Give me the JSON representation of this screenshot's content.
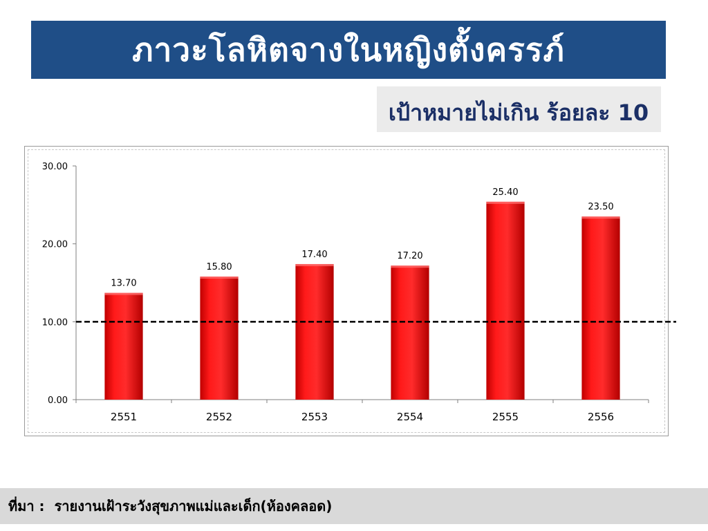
{
  "title": "ภาวะโลหิตจางในหญิงตั้งครรภ์",
  "target_note": "เป้าหมายไม่เกิน ร้อยละ 10",
  "footer": {
    "label": "ที่มา :",
    "text": "รายงานเฝ้าระวังสุขภาพแม่และเด็ก(ห้องคลอด)"
  },
  "colors": {
    "banner": "#1f4e87",
    "bar": "#e8100f",
    "target_text": "#1b2f66",
    "footer_bg": "#d9d9d9"
  },
  "chart_data": {
    "type": "bar",
    "title": "",
    "xlabel": "",
    "ylabel": "",
    "categories": [
      "2551",
      "2552",
      "2553",
      "2554",
      "2555",
      "2556"
    ],
    "values": [
      13.7,
      15.8,
      17.4,
      17.2,
      25.4,
      23.5
    ],
    "data_labels": [
      "13.70",
      "15.80",
      "17.40",
      "17.20",
      "25.40",
      "23.50"
    ],
    "ylim": [
      0,
      30
    ],
    "yticks": [
      0,
      10,
      20,
      30
    ],
    "ytick_labels": [
      "0.00",
      "10.00",
      "20.00",
      "30.00"
    ],
    "reference_line": 10,
    "grid": false,
    "legend": "none"
  }
}
